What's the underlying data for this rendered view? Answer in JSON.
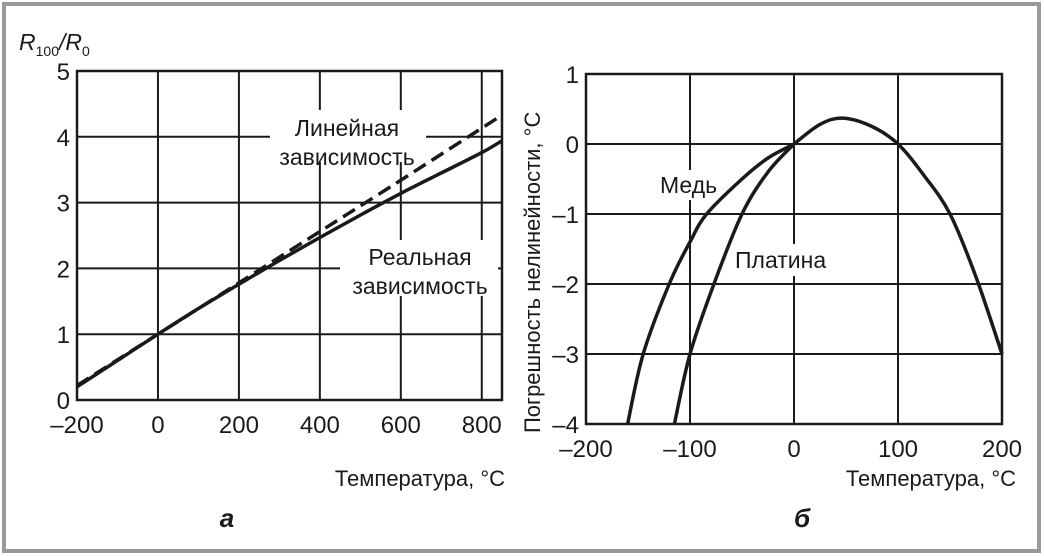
{
  "chart_data": [
    {
      "type": "line",
      "panel_label": "а",
      "ylabel_main": "R",
      "ylabel_sub1": "100",
      "ylabel_mid": "/R",
      "ylabel_sub2": "0",
      "xlabel": "Температура, °С",
      "xlim": [
        -200,
        850
      ],
      "ylim": [
        0,
        5
      ],
      "xticks": [
        -200,
        0,
        200,
        400,
        600,
        800
      ],
      "xtick_labels": [
        "–200",
        "0",
        "200",
        "400",
        "600",
        "800"
      ],
      "yticks": [
        0,
        1,
        2,
        3,
        4,
        5
      ],
      "ytick_labels": [
        "0",
        "1",
        "2",
        "3",
        "4",
        "5"
      ],
      "grid": true,
      "series": [
        {
          "name": "Линейная зависимость",
          "label_lines": [
            "Линейная",
            "зависимость"
          ],
          "style": "dashed",
          "x": [
            -200,
            0,
            200,
            400,
            600,
            850
          ],
          "y": [
            0.22,
            1.0,
            1.78,
            2.56,
            3.34,
            4.33
          ]
        },
        {
          "name": "Реальная зависимость",
          "label_lines": [
            "Реальная",
            "зависимость"
          ],
          "style": "solid",
          "x": [
            -200,
            -100,
            0,
            100,
            200,
            300,
            400,
            500,
            600,
            700,
            800,
            850
          ],
          "y": [
            0.2,
            0.6,
            1.0,
            1.39,
            1.76,
            2.12,
            2.47,
            2.81,
            3.14,
            3.45,
            3.76,
            3.94
          ]
        }
      ]
    },
    {
      "type": "line",
      "panel_label": "б",
      "ylabel": "Погрешность нелинейности, °С",
      "xlabel": "Температура, °С",
      "xlim": [
        -200,
        200
      ],
      "ylim": [
        -4,
        1
      ],
      "xticks": [
        -200,
        -100,
        0,
        100,
        200
      ],
      "xtick_labels": [
        "–200",
        "–100",
        "0",
        "100",
        "200"
      ],
      "yticks": [
        1,
        0,
        -1,
        -2,
        -3,
        -4
      ],
      "ytick_labels": [
        "1",
        "0",
        "–1",
        "–2",
        "–3",
        "–4"
      ],
      "grid": true,
      "series": [
        {
          "name": "Медь",
          "x": [
            -160,
            -145,
            -120,
            -100,
            -84,
            -50,
            -25,
            0
          ],
          "y": [
            -4,
            -3,
            -2,
            -1.4,
            -1,
            -0.5,
            -0.2,
            0
          ]
        },
        {
          "name": "Платина",
          "x": [
            -115,
            -100,
            -77,
            -50,
            -25,
            0
          ],
          "y": [
            -4,
            -3,
            -2,
            -1,
            -0.4,
            0
          ]
        },
        {
          "x": [
            0,
            25,
            47,
            75,
            100,
            125,
            150,
            175,
            200
          ],
          "y": [
            0,
            0.28,
            0.37,
            0.25,
            0,
            -0.45,
            -1.0,
            -1.9,
            -3
          ]
        }
      ]
    }
  ]
}
